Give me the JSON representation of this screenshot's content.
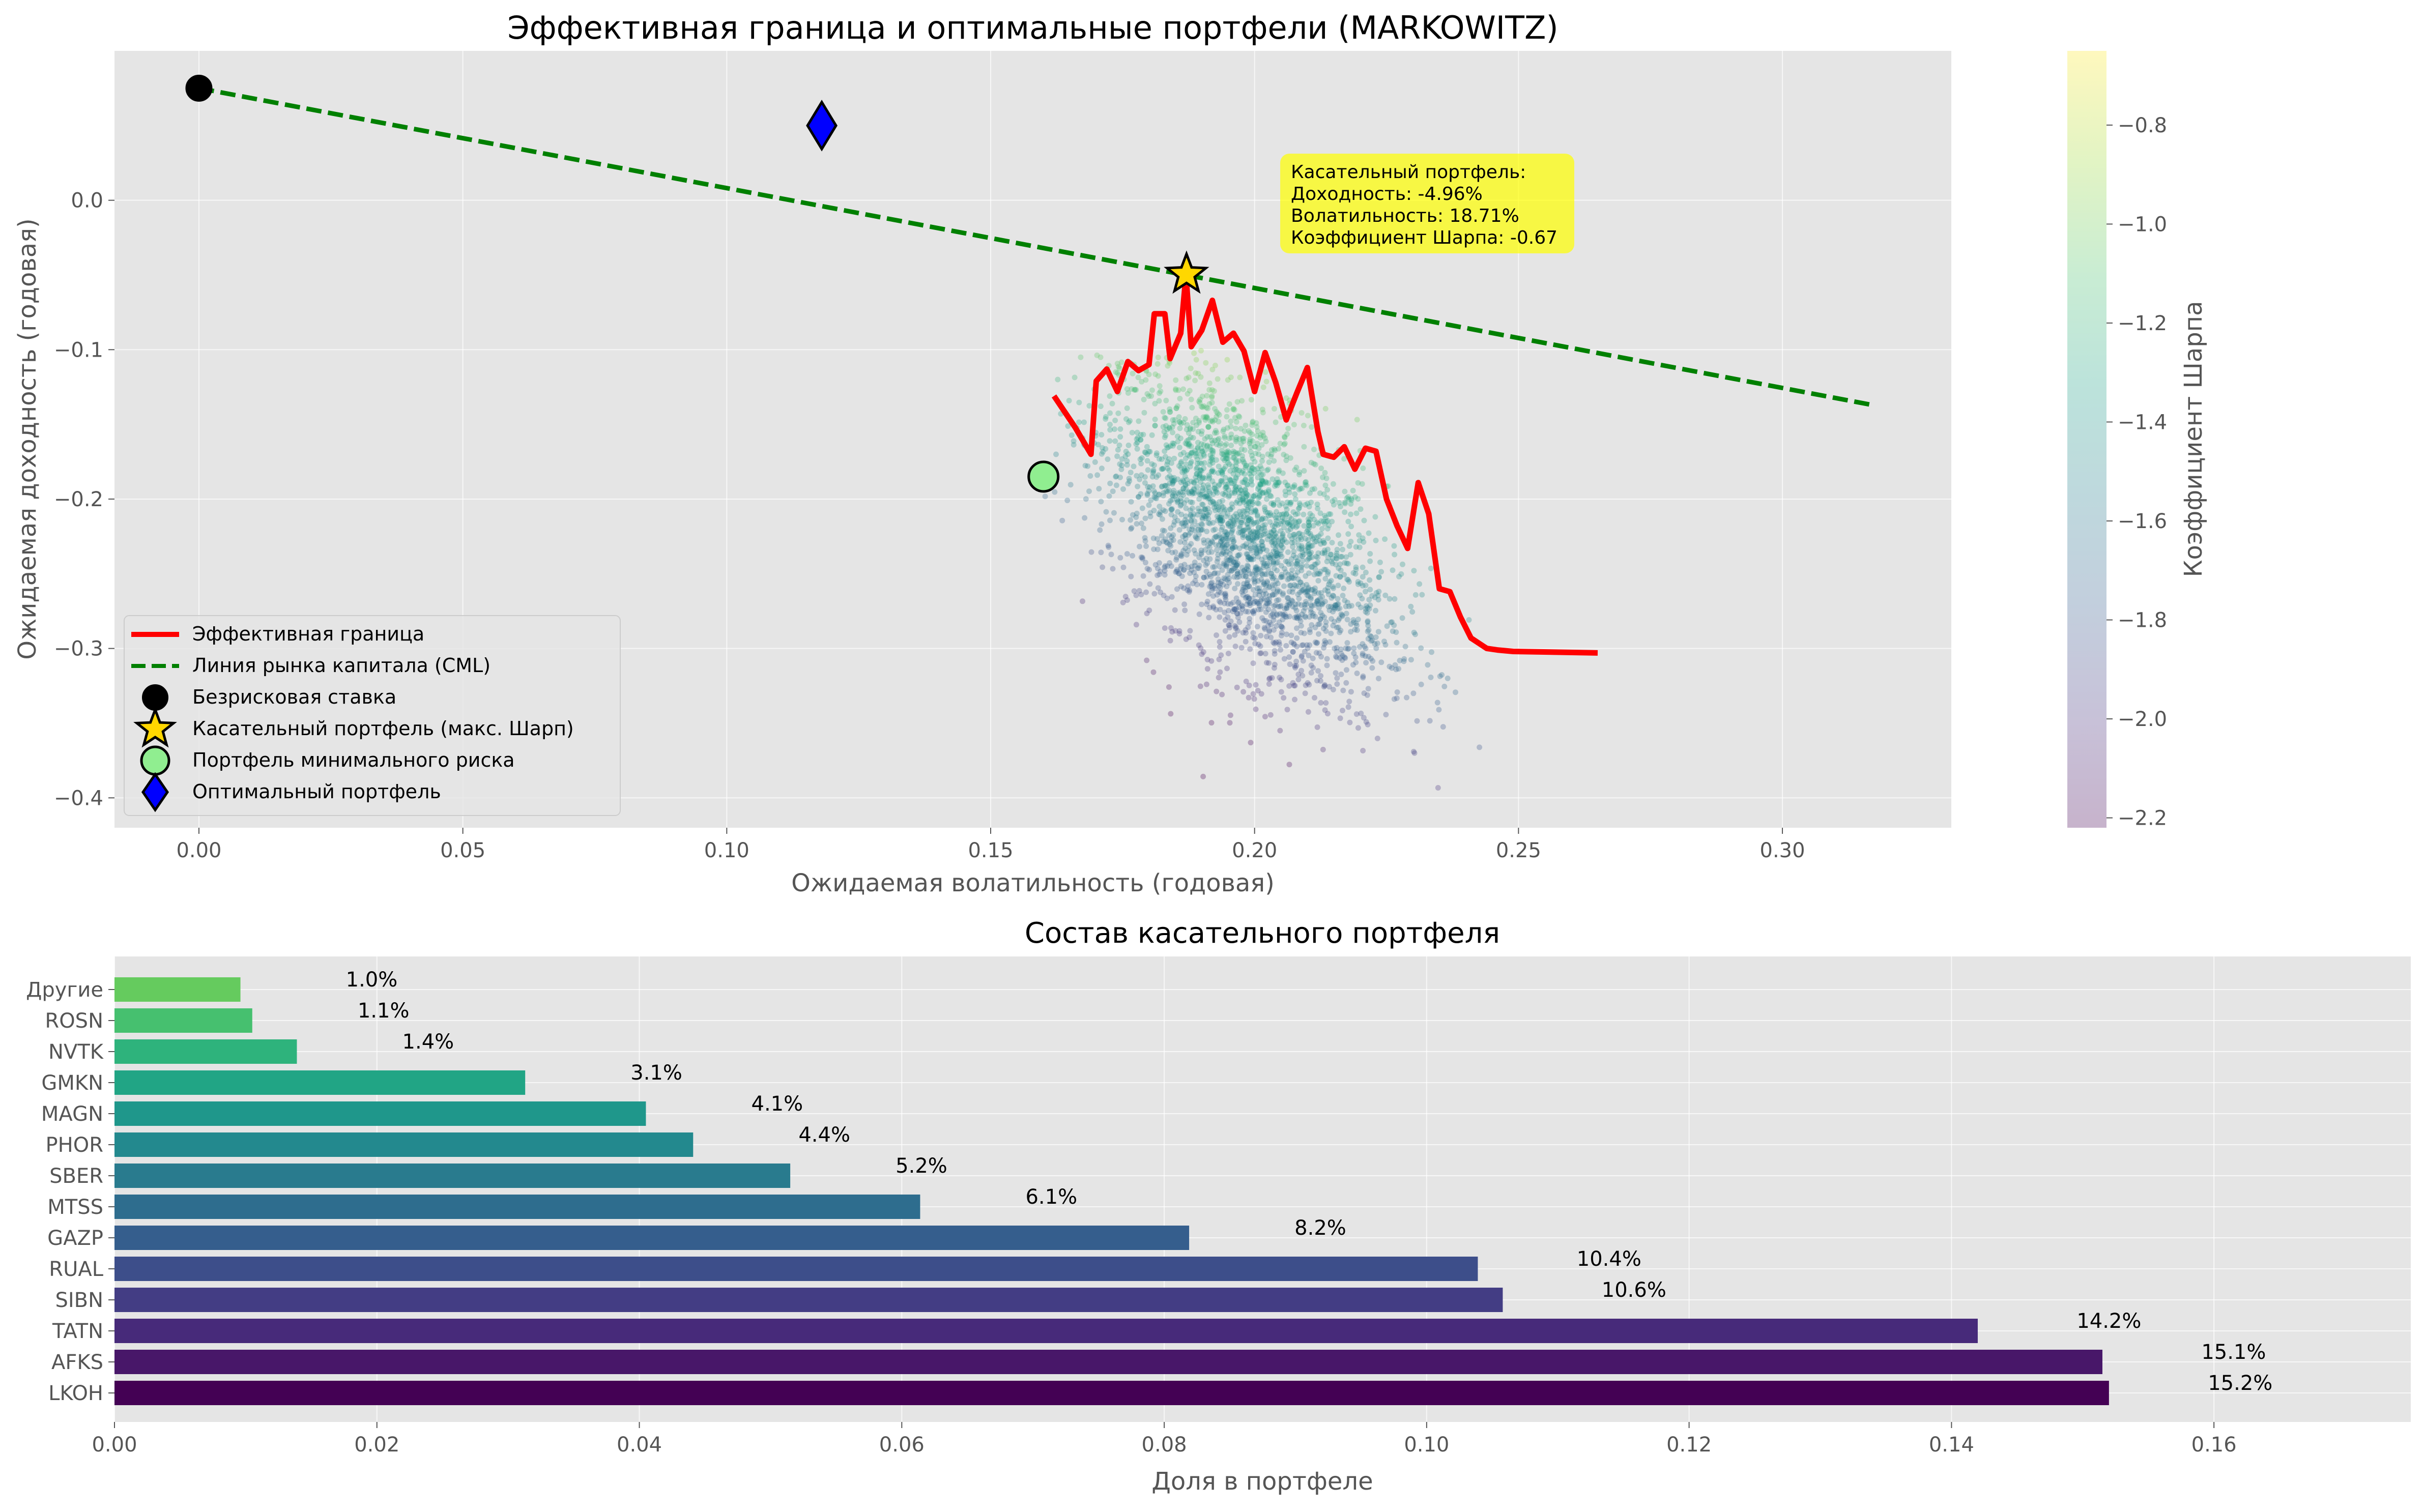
{
  "chart_data": [
    {
      "type": "scatter",
      "title": "Эффективная граница и оптимальные портфели (MARKOWITZ)",
      "xlabel": "Ожидаемая волатильность (годовая)",
      "ylabel": "Ожидаемая доходность (годовая)",
      "xlim": [
        -0.016,
        0.332
      ],
      "ylim": [
        -0.42,
        0.1
      ],
      "xticks": [
        0.0,
        0.05,
        0.1,
        0.15,
        0.2,
        0.25,
        0.3
      ],
      "xtick_labels": [
        "0.00",
        "0.05",
        "0.10",
        "0.15",
        "0.20",
        "0.25",
        "0.30"
      ],
      "yticks": [
        0.0,
        -0.1,
        -0.2,
        -0.3,
        -0.4
      ],
      "ytick_labels": [
        "0.0",
        "−0.1",
        "−0.2",
        "−0.3",
        "−0.4"
      ],
      "grid": true,
      "legend_position": "lower-left",
      "colorbar": {
        "label": "Коэффициент Шарпа",
        "range": [
          -2.22,
          -0.65
        ],
        "ticks": [
          -0.8,
          -1.0,
          -1.2,
          -1.4,
          -1.6,
          -1.8,
          -2.0,
          -2.2
        ],
        "tick_labels": [
          "−0.8",
          "−1.0",
          "−1.2",
          "−1.4",
          "−1.6",
          "−1.8",
          "−2.0",
          "−2.2"
        ],
        "colormap": "viridis"
      },
      "scatter_cloud": {
        "description_hidden": true,
        "x_center": 0.198,
        "y_center": -0.222,
        "x_range": [
          0.16,
          0.25
        ],
        "y_range": [
          -0.4,
          -0.1
        ]
      },
      "efficient_frontier": {
        "name": "Эффективная граница",
        "color": "#ff0000",
        "x": [
          0.162,
          0.166,
          0.169,
          0.17,
          0.172,
          0.174,
          0.176,
          0.178,
          0.18,
          0.181,
          0.183,
          0.184,
          0.186,
          0.187,
          0.188,
          0.19,
          0.192,
          0.194,
          0.196,
          0.198,
          0.2,
          0.202,
          0.204,
          0.206,
          0.208,
          0.21,
          0.212,
          0.213,
          0.215,
          0.217,
          0.219,
          0.221,
          0.223,
          0.225,
          0.227,
          0.229,
          0.231,
          0.233,
          0.235,
          0.237,
          0.239,
          0.241,
          0.244,
          0.246,
          0.249,
          0.265
        ],
        "y": [
          -0.131,
          -0.152,
          -0.17,
          -0.121,
          -0.113,
          -0.128,
          -0.108,
          -0.114,
          -0.11,
          -0.076,
          -0.076,
          -0.106,
          -0.089,
          -0.05,
          -0.098,
          -0.087,
          -0.067,
          -0.095,
          -0.089,
          -0.101,
          -0.128,
          -0.102,
          -0.122,
          -0.147,
          -0.129,
          -0.112,
          -0.155,
          -0.17,
          -0.172,
          -0.165,
          -0.18,
          -0.166,
          -0.168,
          -0.2,
          -0.218,
          -0.233,
          -0.189,
          -0.21,
          -0.26,
          -0.262,
          -0.279,
          -0.293,
          -0.3,
          -0.301,
          -0.302,
          -0.303
        ]
      },
      "cml": {
        "name": "Линия рынка капитала (CML)",
        "color": "#008000",
        "x": [
          0.0,
          0.317
        ],
        "y": [
          0.075,
          -0.137
        ]
      },
      "points": [
        {
          "name": "Безрисковая ставка",
          "x": 0.0,
          "y": 0.075,
          "marker": "circle",
          "color": "#000000"
        },
        {
          "name": "Касательный портфель (макс. Шарп)",
          "x": 0.1871,
          "y": -0.0496,
          "marker": "star",
          "color": "#ffd700"
        },
        {
          "name": "Портфель минимального риска",
          "x": 0.16,
          "y": -0.185,
          "marker": "circle",
          "color": "#90ee90"
        },
        {
          "name": "Оптимальный портфель",
          "x": 0.118,
          "y": 0.05,
          "marker": "diamond",
          "color": "#0000ff"
        }
      ],
      "annotation": {
        "lines": [
          "Касательный портфель:",
          "Доходность: -4.96%",
          "Волатильность: 18.71%",
          "Коэффициент Шарпа: -0.67"
        ],
        "color": "#ffff00"
      },
      "legend": [
        "Эффективная граница",
        "Линия рынка капитала (CML)",
        "Безрисковая ставка",
        "Касательный портфель (макс. Шарп)",
        "Портфель минимального риска",
        "Оптимальный портфель"
      ]
    },
    {
      "type": "bar",
      "orientation": "horizontal",
      "title": "Состав касательного портфеля",
      "xlabel": "Доля в портфеле",
      "ylabel": "",
      "xlim": [
        0,
        0.175
      ],
      "xticks": [
        0.0,
        0.02,
        0.04,
        0.06,
        0.08,
        0.1,
        0.12,
        0.14,
        0.16
      ],
      "xtick_labels": [
        "0.00",
        "0.02",
        "0.04",
        "0.06",
        "0.08",
        "0.10",
        "0.12",
        "0.14",
        "0.16"
      ],
      "grid": true,
      "categories": [
        "LKOH",
        "AFKS",
        "TATN",
        "SIBN",
        "RUAL",
        "GAZP",
        "MTSS",
        "SBER",
        "PHOR",
        "MAGN",
        "GMKN",
        "NVTK",
        "ROSN",
        "Другие"
      ],
      "values": [
        0.152,
        0.1515,
        0.142,
        0.1058,
        0.1039,
        0.0819,
        0.0614,
        0.0515,
        0.0441,
        0.0405,
        0.0313,
        0.0139,
        0.0105,
        0.0096
      ],
      "labels": [
        "15.2%",
        "15.1%",
        "14.2%",
        "10.6%",
        "10.4%",
        "8.2%",
        "6.1%",
        "5.2%",
        "4.4%",
        "4.1%",
        "3.1%",
        "1.4%",
        "1.1%",
        "1.0%"
      ],
      "colors": [
        "#440154",
        "#481769",
        "#472a7a",
        "#433d84",
        "#3d4e8a",
        "#355e8d",
        "#2e6d8e",
        "#297b8e",
        "#23898e",
        "#1f978b",
        "#21a585",
        "#2eb37c",
        "#46c06f",
        "#65cb5e"
      ]
    }
  ]
}
